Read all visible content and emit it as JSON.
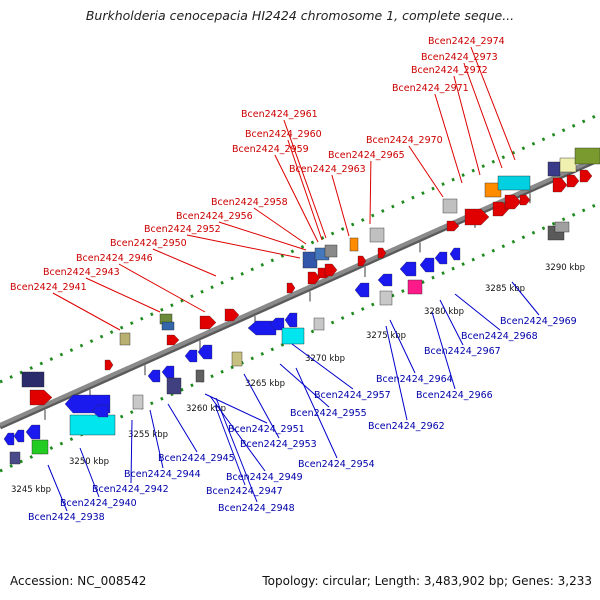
{
  "title": "Burkholderia cenocepacia HI2424 chromosome 1, complete seque...",
  "footer": {
    "accession": "Accession: NC_008542",
    "topology": "Topology: circular; Length: 3,483,902 bp; Genes: 3,233"
  },
  "colors": {
    "top_label": "#cc0000",
    "bottom_label": "#0000aa",
    "axis": "#8a8a8a",
    "tick": "#2d8a2d",
    "dot": "#1e8a1e"
  },
  "scale_labels": [
    "3245 kbp",
    "3250 kbp",
    "3255 kbp",
    "3260 kbp",
    "3265 kbp",
    "3270 kbp",
    "3275 kbp",
    "3280 kbp",
    "3285 kbp",
    "3290 kbp"
  ],
  "top_genes": [
    "Bcen2424_2941",
    "Bcen2424_2943",
    "Bcen2424_2946",
    "Bcen2424_2950",
    "Bcen2424_2952",
    "Bcen2424_2956",
    "Bcen2424_2958",
    "Bcen2424_2959",
    "Bcen2424_2960",
    "Bcen2424_2961",
    "Bcen2424_2963",
    "Bcen2424_2965",
    "Bcen2424_2970",
    "Bcen2424_2971",
    "Bcen2424_2972",
    "Bcen2424_2973",
    "Bcen2424_2974"
  ],
  "bottom_genes": [
    "Bcen2424_2938",
    "Bcen2424_2940",
    "Bcen2424_2942",
    "Bcen2424_2944",
    "Bcen2424_2945",
    "Bcen2424_2947",
    "Bcen2424_2948",
    "Bcen2424_2949",
    "Bcen2424_2951",
    "Bcen2424_2953",
    "Bcen2424_2954",
    "Bcen2424_2955",
    "Bcen2424_2957",
    "Bcen2424_2962",
    "Bcen2424_2964",
    "Bcen2424_2966",
    "Bcen2424_2967",
    "Bcen2424_2968",
    "Bcen2424_2969"
  ]
}
